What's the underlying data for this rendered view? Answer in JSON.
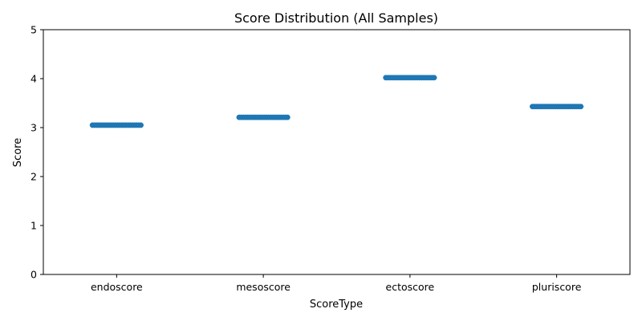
{
  "chart_data": {
    "type": "scatter",
    "title": "Score Distribution (All Samples)",
    "xlabel": "ScoreType",
    "ylabel": "Score",
    "categories": [
      "endoscore",
      "mesoscore",
      "ectoscore",
      "pluriscore"
    ],
    "values": [
      3.05,
      3.21,
      4.02,
      3.43
    ],
    "ylim": [
      0,
      5
    ],
    "yticks": [
      "0",
      "1",
      "2",
      "3",
      "4",
      "5"
    ],
    "grid": false,
    "legend": "none",
    "color": "#1f77b4"
  }
}
